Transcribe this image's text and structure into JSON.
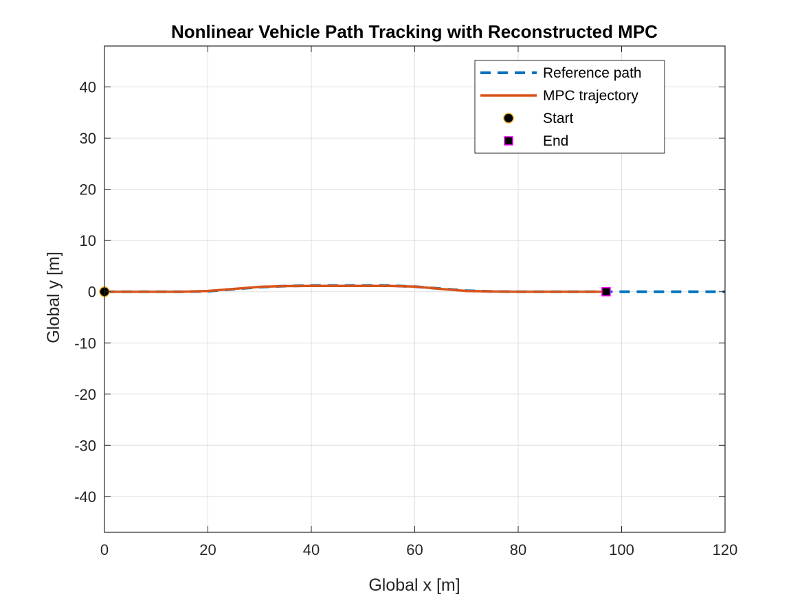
{
  "chart_data": {
    "type": "line",
    "title": "Nonlinear Vehicle Path Tracking with Reconstructed MPC",
    "xlabel": "Global x [m]",
    "ylabel": "Global y [m]",
    "xlim": [
      0,
      120
    ],
    "ylim": [
      -47,
      48
    ],
    "xticks": [
      0,
      20,
      40,
      60,
      80,
      100,
      120
    ],
    "yticks": [
      -40,
      -30,
      -20,
      -10,
      0,
      10,
      20,
      30,
      40
    ],
    "xtick_labels": [
      "0",
      "20",
      "40",
      "60",
      "80",
      "100",
      "120"
    ],
    "ytick_labels": [
      "-40",
      "-30",
      "-20",
      "-10",
      "0",
      "10",
      "20",
      "30",
      "40"
    ],
    "grid": true,
    "legend_position": "top-right",
    "series": [
      {
        "name": "Reference path",
        "style": "dashed",
        "color": "#0072BD",
        "x": [
          0,
          15,
          20,
          25,
          30,
          35,
          40,
          50,
          55,
          60,
          65,
          70,
          75,
          80,
          100,
          120
        ],
        "y": [
          0,
          0,
          0.1,
          0.5,
          0.9,
          1.1,
          1.2,
          1.2,
          1.2,
          1.0,
          0.6,
          0.2,
          0.05,
          0,
          0,
          0
        ]
      },
      {
        "name": "MPC trajectory",
        "style": "solid",
        "color": "#D95319",
        "x": [
          0,
          15,
          20,
          25,
          30,
          35,
          40,
          50,
          55,
          60,
          65,
          70,
          75,
          80,
          90,
          97
        ],
        "y": [
          0,
          0,
          0.15,
          0.55,
          0.95,
          1.1,
          1.15,
          1.15,
          1.15,
          1.0,
          0.55,
          0.15,
          0.05,
          0,
          0,
          0
        ]
      }
    ],
    "markers": [
      {
        "name": "Start",
        "shape": "circle",
        "x": 0,
        "y": 0,
        "fill": "#000000",
        "edge": "#EDB120"
      },
      {
        "name": "End",
        "shape": "square",
        "x": 97,
        "y": 0,
        "fill": "#000000",
        "edge": "#FF00FF"
      }
    ]
  }
}
